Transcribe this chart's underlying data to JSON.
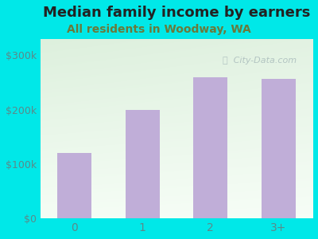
{
  "title": "Median family income by earners",
  "subtitle": "All residents in Woodway, WA",
  "categories": [
    "0",
    "1",
    "2",
    "3+"
  ],
  "values": [
    120000,
    200000,
    260000,
    257000
  ],
  "bar_color": "#c0aed8",
  "outer_bg_color": "#00e8e8",
  "plot_bg_gradient_top": "#ddf0dd",
  "plot_bg_gradient_bottom": "#f5fdf5",
  "title_color": "#222222",
  "subtitle_color": "#6a7a3a",
  "tick_color": "#5a8a8a",
  "ylim": [
    0,
    330000
  ],
  "yticks": [
    0,
    100000,
    200000,
    300000
  ],
  "ytick_labels": [
    "$0",
    "$100k",
    "$200k",
    "$300k"
  ],
  "watermark": "City-Data.com",
  "title_fontsize": 13,
  "subtitle_fontsize": 10,
  "tick_fontsize": 9
}
